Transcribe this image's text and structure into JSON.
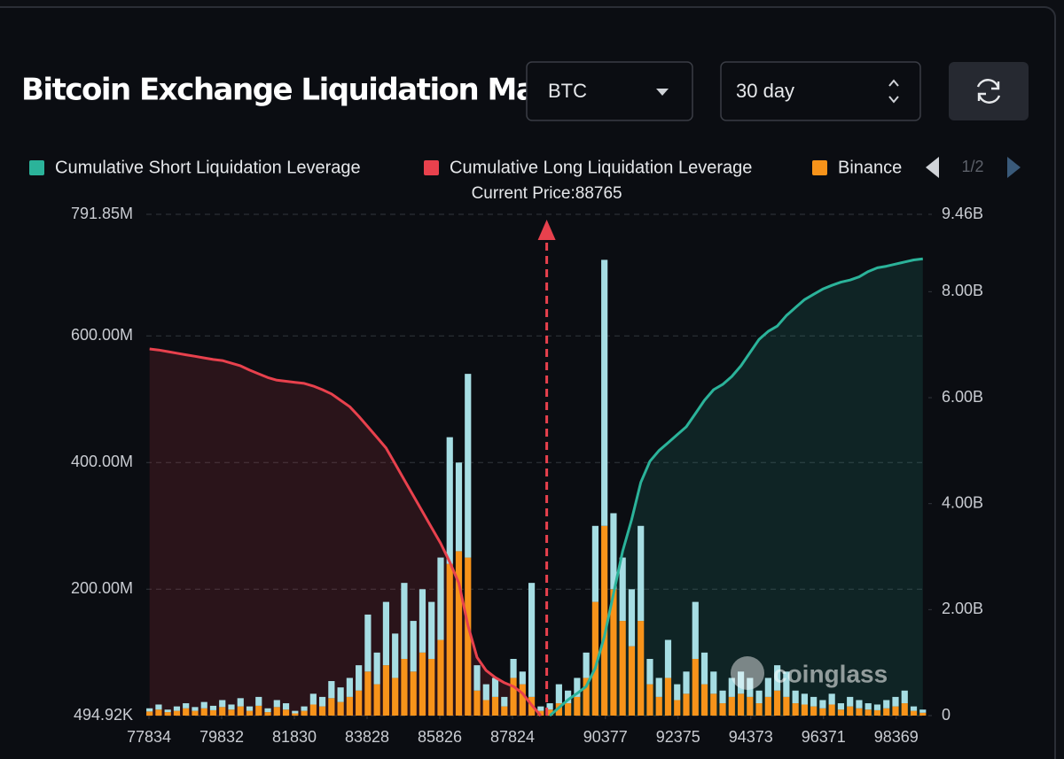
{
  "header": {
    "title": "Bitcoin Exchange Liquidation Map",
    "symbol": "BTC",
    "range": "30 day"
  },
  "chart_data": {
    "type": "bar",
    "annotation": "Current Price:88765",
    "current_price": 88765,
    "watermark": "coinglass",
    "legend_page": "1/2",
    "grid": true,
    "x": [
      77850,
      78100,
      78350,
      78600,
      78850,
      79100,
      79350,
      79600,
      79850,
      80100,
      80350,
      80600,
      80850,
      81100,
      81350,
      81600,
      81850,
      82100,
      82350,
      82600,
      82850,
      83100,
      83350,
      83600,
      83850,
      84100,
      84350,
      84600,
      84850,
      85100,
      85350,
      85600,
      85850,
      86100,
      86350,
      86600,
      86850,
      87100,
      87350,
      87600,
      87850,
      88100,
      88350,
      88600,
      88850,
      89100,
      89350,
      89600,
      89850,
      90100,
      90350,
      90600,
      90850,
      91100,
      91350,
      91600,
      91850,
      92100,
      92350,
      92600,
      92850,
      93100,
      93350,
      93600,
      93850,
      94100,
      94350,
      94600,
      94850,
      95100,
      95350,
      95600,
      95850,
      96100,
      96350,
      96600,
      96850,
      97100,
      97350,
      97600,
      97850,
      98100,
      98350,
      98600,
      98850,
      99100
    ],
    "xlim": [
      77761,
      99203
    ],
    "xticks": [
      77834,
      79832,
      81830,
      83828,
      85826,
      87824,
      90377,
      92375,
      94373,
      96371,
      98369
    ],
    "ylim": [
      494920,
      791850000
    ],
    "yticks": [
      {
        "value": 494920,
        "label": "494.92K"
      },
      {
        "value": 200000000,
        "label": "200.00M"
      },
      {
        "value": 400000000,
        "label": "400.00M"
      },
      {
        "value": 600000000,
        "label": "600.00M"
      },
      {
        "value": 791850000,
        "label": "791.85M"
      }
    ],
    "y2lim": [
      0,
      9460000000
    ],
    "y2ticks": [
      0,
      {
        "value": 2000000000,
        "label": "2.00B"
      },
      {
        "value": 4000000000,
        "label": "4.00B"
      },
      {
        "value": 6000000000,
        "label": "6.00B"
      },
      {
        "value": 8000000000,
        "label": "8.00B"
      },
      {
        "value": 9460000000,
        "label": "9.46B"
      }
    ],
    "series": [
      {
        "name": "Cumulative Short Liquidation Leverage",
        "color": "#2bb39a",
        "type": "line",
        "axis": "y2",
        "values": [
          null,
          null,
          null,
          null,
          null,
          null,
          null,
          null,
          null,
          null,
          null,
          null,
          null,
          null,
          null,
          null,
          null,
          null,
          null,
          null,
          null,
          null,
          null,
          null,
          null,
          null,
          null,
          null,
          null,
          null,
          null,
          null,
          null,
          null,
          null,
          null,
          null,
          null,
          null,
          null,
          null,
          null,
          null,
          null,
          0,
          150000000,
          300000000,
          420000000,
          550000000,
          900000000,
          1500000000,
          2300000000,
          3100000000,
          3700000000,
          4400000000,
          4800000000,
          5000000000,
          5150000000,
          5300000000,
          5450000000,
          5700000000,
          5950000000,
          6150000000,
          6250000000,
          6400000000,
          6600000000,
          6850000000,
          7100000000,
          7250000000,
          7350000000,
          7550000000,
          7700000000,
          7850000000,
          7950000000,
          8050000000,
          8120000000,
          8180000000,
          8220000000,
          8280000000,
          8380000000,
          8450000000,
          8480000000,
          8520000000,
          8560000000,
          8600000000,
          8620000000
        ]
      },
      {
        "name": "Cumulative Long Liquidation Leverage",
        "color": "#e8414d",
        "type": "line",
        "axis": "y2",
        "values": [
          6920000000,
          6900000000,
          6870000000,
          6840000000,
          6810000000,
          6780000000,
          6750000000,
          6720000000,
          6700000000,
          6650000000,
          6600000000,
          6520000000,
          6450000000,
          6380000000,
          6330000000,
          6310000000,
          6290000000,
          6270000000,
          6220000000,
          6150000000,
          6070000000,
          5950000000,
          5830000000,
          5650000000,
          5450000000,
          5250000000,
          5050000000,
          4750000000,
          4450000000,
          4150000000,
          3850000000,
          3550000000,
          3250000000,
          2900000000,
          2500000000,
          1700000000,
          1100000000,
          850000000,
          720000000,
          620000000,
          550000000,
          420000000,
          200000000,
          0,
          null,
          null,
          null,
          null,
          null,
          null,
          null,
          null,
          null,
          null,
          null,
          null,
          null,
          null,
          null,
          null,
          null,
          null,
          null,
          null,
          null,
          null,
          null,
          null,
          null,
          null,
          null,
          null,
          null,
          null,
          null,
          null,
          null,
          null,
          null,
          null,
          null,
          null,
          null,
          null,
          null,
          null
        ]
      },
      {
        "name": "Binance",
        "color": "#f7931a",
        "type": "bar",
        "values": [
          7000000,
          10000000,
          6000000,
          8000000,
          12000000,
          8000000,
          12000000,
          9000000,
          14000000,
          10000000,
          15000000,
          8000000,
          16000000,
          6000000,
          14000000,
          10000000,
          4000000,
          8000000,
          18000000,
          15000000,
          28000000,
          22000000,
          30000000,
          40000000,
          70000000,
          50000000,
          80000000,
          60000000,
          90000000,
          70000000,
          100000000,
          90000000,
          120000000,
          240000000,
          260000000,
          250000000,
          40000000,
          25000000,
          30000000,
          15000000,
          60000000,
          50000000,
          30000000,
          8000000,
          10000000,
          20000000,
          20000000,
          30000000,
          60000000,
          180000000,
          300000000,
          200000000,
          150000000,
          110000000,
          150000000,
          50000000,
          30000000,
          60000000,
          25000000,
          35000000,
          90000000,
          50000000,
          35000000,
          20000000,
          30000000,
          35000000,
          30000000,
          20000000,
          30000000,
          40000000,
          30000000,
          20000000,
          18000000,
          15000000,
          12000000,
          18000000,
          10000000,
          15000000,
          12000000,
          10000000,
          9000000,
          12000000,
          15000000,
          20000000,
          8000000,
          5000000
        ]
      },
      {
        "color": "#a6dde3",
        "type": "bar",
        "values": [
          5000000,
          8000000,
          4000000,
          7000000,
          8000000,
          6000000,
          10000000,
          7000000,
          11000000,
          8000000,
          13000000,
          7000000,
          14000000,
          6000000,
          11000000,
          10000000,
          4000000,
          7000000,
          17000000,
          15000000,
          27000000,
          23000000,
          30000000,
          40000000,
          90000000,
          50000000,
          100000000,
          70000000,
          120000000,
          80000000,
          100000000,
          90000000,
          130000000,
          200000000,
          140000000,
          290000000,
          40000000,
          25000000,
          30000000,
          15000000,
          30000000,
          20000000,
          180000000,
          7000000,
          10000000,
          30000000,
          20000000,
          30000000,
          40000000,
          120000000,
          420000000,
          120000000,
          100000000,
          90000000,
          150000000,
          40000000,
          30000000,
          60000000,
          25000000,
          35000000,
          90000000,
          50000000,
          35000000,
          20000000,
          30000000,
          35000000,
          30000000,
          20000000,
          30000000,
          40000000,
          40000000,
          20000000,
          17000000,
          15000000,
          13000000,
          17000000,
          10000000,
          15000000,
          13000000,
          10000000,
          9000000,
          13000000,
          15000000,
          20000000,
          7000000,
          5000000
        ]
      }
    ]
  }
}
